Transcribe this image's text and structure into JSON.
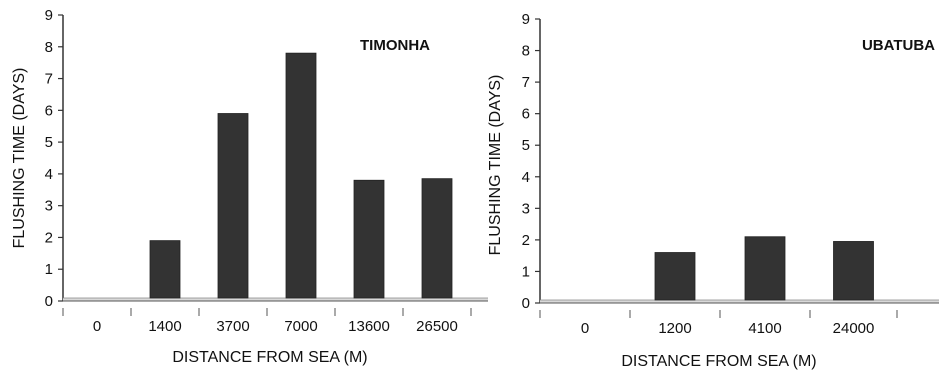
{
  "chart_data": [
    {
      "type": "bar",
      "title": "TIMONHA",
      "xlabel": "DISTANCE FROM SEA (M)",
      "ylabel": "FLUSHING TIME (DAYS)",
      "categories": [
        "0",
        "1400",
        "3700",
        "7000",
        "13600",
        "26500"
      ],
      "values": [
        0,
        1.9,
        5.9,
        7.8,
        3.8,
        3.85
      ],
      "ylim": [
        0,
        9
      ],
      "yticks": [
        "0",
        "1",
        "2",
        "3",
        "4",
        "5",
        "6",
        "7",
        "8",
        "9"
      ],
      "grid": false,
      "bar_color": "#333333"
    },
    {
      "type": "bar",
      "title": "UBATUBA",
      "xlabel": "DISTANCE FROM SEA (M)",
      "ylabel": "FLUSHING TIME (DAYS)",
      "categories": [
        "0",
        "1200",
        "4100",
        "24000"
      ],
      "values": [
        0,
        1.6,
        2.1,
        1.95
      ],
      "ylim": [
        0,
        9
      ],
      "yticks": [
        "0",
        "1",
        "2",
        "3",
        "4",
        "5",
        "6",
        "7",
        "8",
        "9"
      ],
      "grid": false,
      "bar_color": "#333333"
    }
  ]
}
